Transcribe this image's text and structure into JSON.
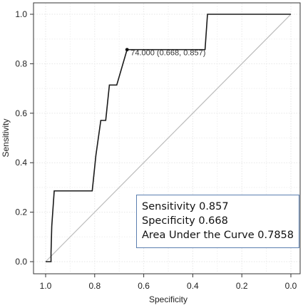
{
  "chart_data": {
    "type": "line",
    "xlabel": "Specificity",
    "ylabel": "Sensitivity",
    "xlim": [
      1.0,
      0.0
    ],
    "ylim": [
      0.0,
      1.0
    ],
    "x_ticks": [
      "1.0",
      "0.8",
      "0.6",
      "0.4",
      "0.2",
      "0.0"
    ],
    "y_ticks": [
      "0.0",
      "0.2",
      "0.4",
      "0.6",
      "0.8",
      "1.0"
    ],
    "grid": true,
    "series": [
      {
        "color": "#1a1a1a",
        "points": [
          [
            1.0,
            0.0
          ],
          [
            0.978,
            0.0
          ],
          [
            0.978,
            0.036
          ],
          [
            0.975,
            0.143
          ],
          [
            0.965,
            0.286
          ],
          [
            0.81,
            0.286
          ],
          [
            0.795,
            0.43
          ],
          [
            0.775,
            0.571
          ],
          [
            0.755,
            0.571
          ],
          [
            0.74,
            0.714
          ],
          [
            0.71,
            0.714
          ],
          [
            0.668,
            0.857
          ],
          [
            0.35,
            0.857
          ],
          [
            0.34,
            1.0
          ],
          [
            0.0,
            1.0
          ]
        ]
      }
    ],
    "reference_line": {
      "points": [
        [
          1.0,
          0.0
        ],
        [
          0.0,
          1.0
        ]
      ],
      "color": "#bbbbbb"
    },
    "highlight": {
      "x": 0.668,
      "y": 0.857,
      "label": "74.000 (0.668, 0.857)"
    },
    "stats": [
      "Sensitivity 0.857",
      "Specificity 0.668",
      "Area Under the Curve 0.7858"
    ]
  }
}
